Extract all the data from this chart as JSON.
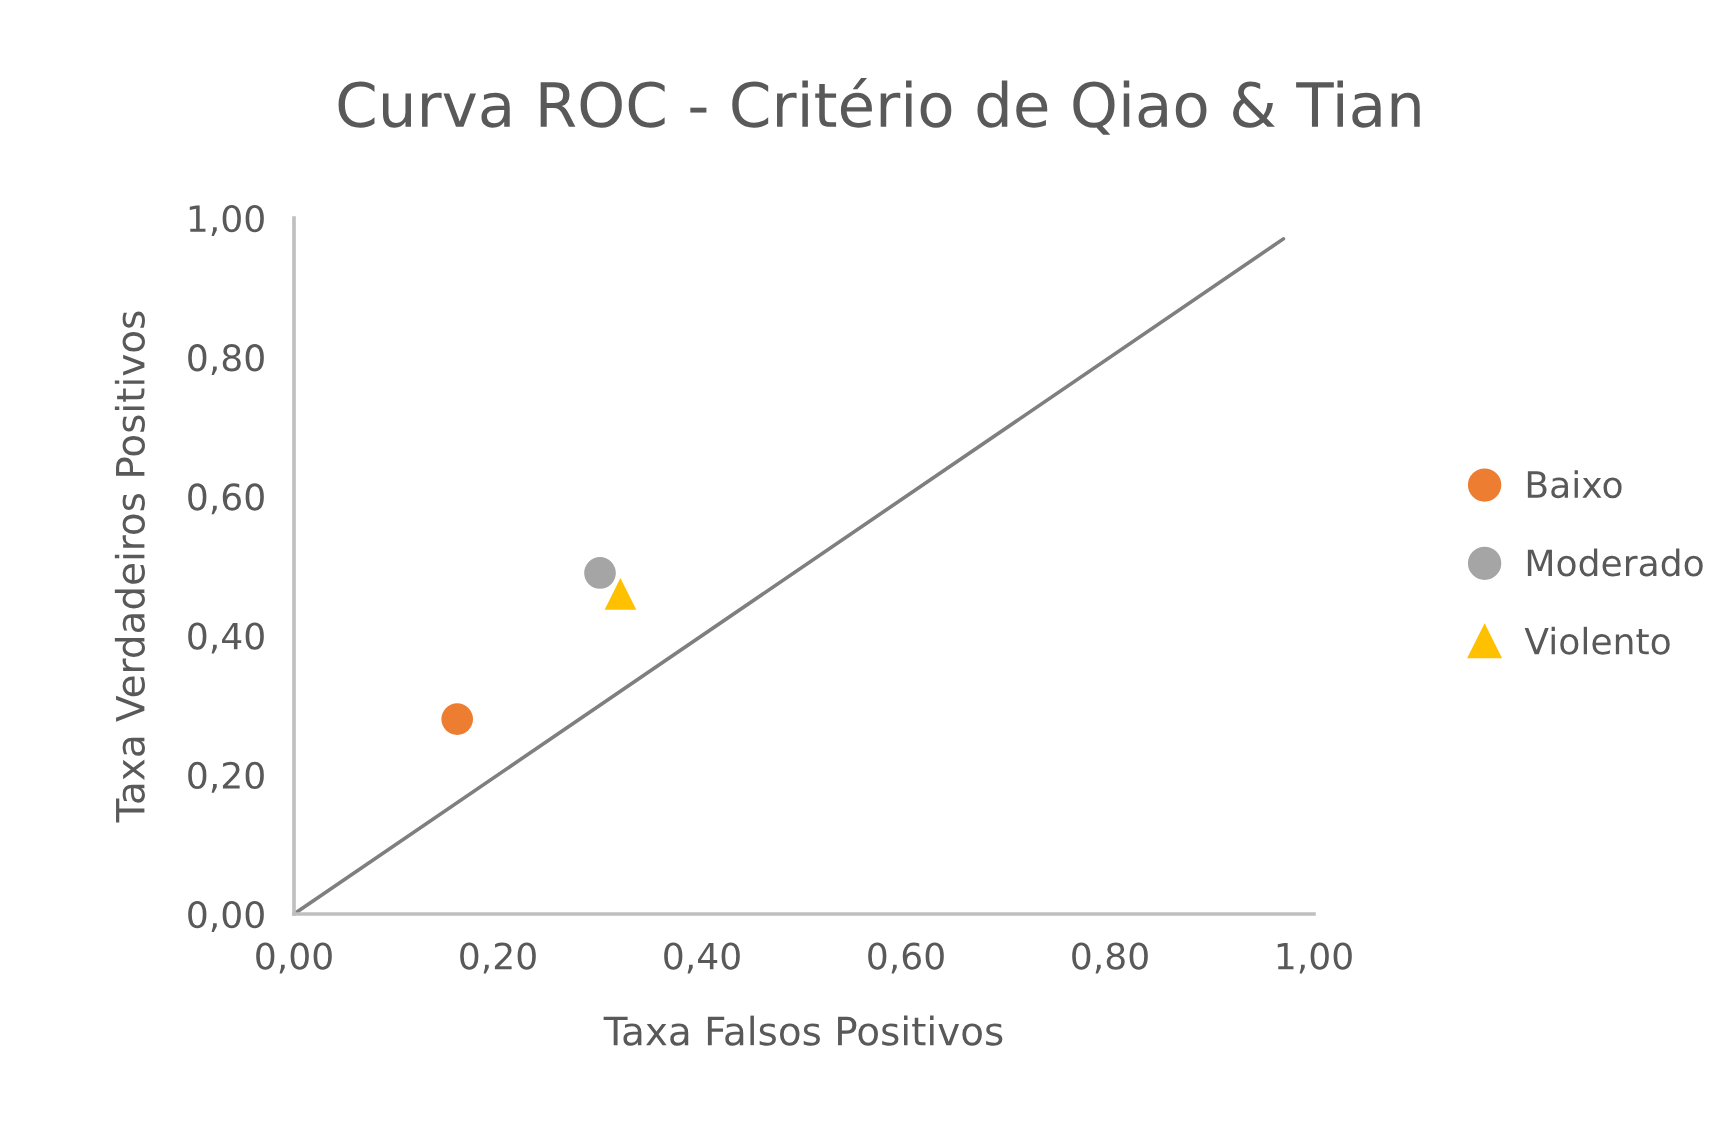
{
  "chart_data": {
    "type": "scatter",
    "title": "Curva ROC - Critério de Qiao & Tian",
    "xlabel": "Taxa Falsos Positivos",
    "ylabel": "Taxa Verdadeiros Positivos",
    "xlim": [
      0,
      1
    ],
    "ylim": [
      0,
      1
    ],
    "xticks": [
      {
        "value": 0,
        "label": "0,00"
      },
      {
        "value": 0.2,
        "label": "0,20"
      },
      {
        "value": 0.4,
        "label": "0,40"
      },
      {
        "value": 0.6,
        "label": "0,60"
      },
      {
        "value": 0.8,
        "label": "0,80"
      },
      {
        "value": 1,
        "label": "1,00"
      }
    ],
    "yticks": [
      {
        "value": 0,
        "label": "0,00"
      },
      {
        "value": 0.2,
        "label": "0,20"
      },
      {
        "value": 0.4,
        "label": "0,40"
      },
      {
        "value": 0.6,
        "label": "0,60"
      },
      {
        "value": 0.8,
        "label": "0,80"
      },
      {
        "value": 1,
        "label": "1,00"
      }
    ],
    "grid": false,
    "legend": "right",
    "series": [
      {
        "type": "line",
        "color": "#7f7f7f",
        "x": [
          0,
          0.97
        ],
        "values": [
          0,
          0.97
        ],
        "marker": "none",
        "line_style": "solid"
      },
      {
        "name": "Baixo",
        "color": "#ed7d31",
        "x": [
          0.16
        ],
        "values": [
          0.28
        ],
        "marker": "circle"
      },
      {
        "name": "Moderado",
        "color": "#a5a5a5",
        "x": [
          0.3
        ],
        "values": [
          0.49
        ],
        "marker": "circle"
      },
      {
        "name": "Violento",
        "color": "#ffc000",
        "x": [
          0.32
        ],
        "values": [
          0.46
        ],
        "marker": "triangle"
      }
    ]
  }
}
